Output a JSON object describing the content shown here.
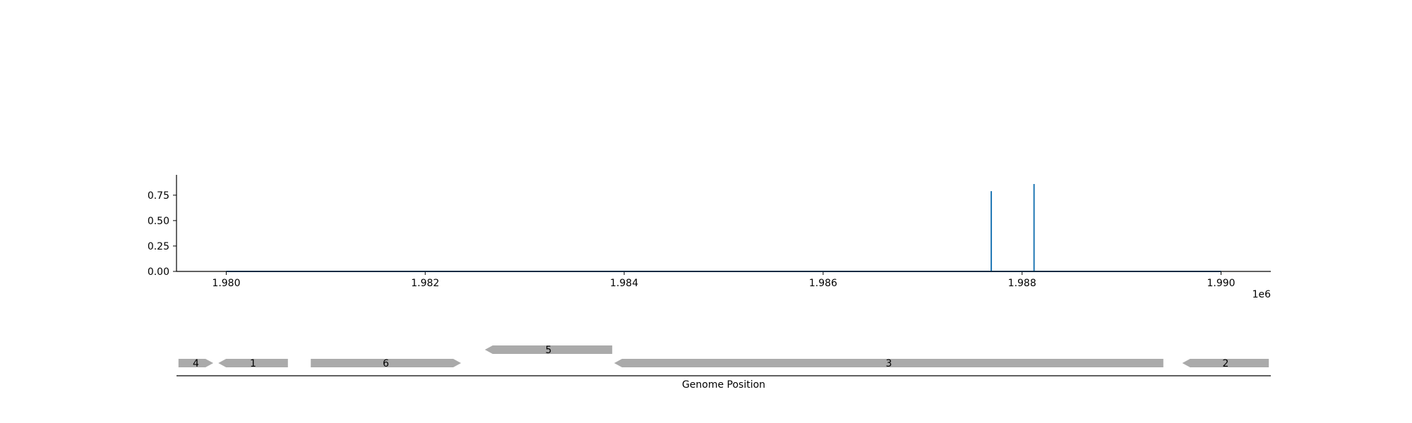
{
  "chart_data": {
    "type": "line",
    "x_offset_label": "1e6",
    "xlim": [
      1979500,
      1990500
    ],
    "ylim": [
      0,
      0.95
    ],
    "xticks": [
      {
        "value": 1980000,
        "label": "1.980"
      },
      {
        "value": 1982000,
        "label": "1.982"
      },
      {
        "value": 1984000,
        "label": "1.984"
      },
      {
        "value": 1986000,
        "label": "1.986"
      },
      {
        "value": 1988000,
        "label": "1.988"
      },
      {
        "value": 1990000,
        "label": "1.990"
      }
    ],
    "yticks": [
      {
        "value": 0.0,
        "label": "0.00"
      },
      {
        "value": 0.25,
        "label": "0.25"
      },
      {
        "value": 0.5,
        "label": "0.50"
      },
      {
        "value": 0.75,
        "label": "0.75"
      }
    ],
    "series": [
      {
        "color": "#1f77b4",
        "x": [
          1980000,
          1987690,
          1987690,
          1987690,
          1988120,
          1988120,
          1988120,
          1990000
        ],
        "y": [
          0,
          0,
          0.79,
          0,
          0,
          0.86,
          0,
          0
        ]
      }
    ],
    "genes": {
      "color": "#aaaaaa",
      "xlabel": "Genome Position",
      "items": [
        {
          "label": "4",
          "start": 1979520,
          "end": 1979870,
          "strand": 1,
          "level": 0
        },
        {
          "label": "1",
          "start": 1979920,
          "end": 1980620,
          "strand": -1,
          "level": 0
        },
        {
          "label": "6",
          "start": 1980850,
          "end": 1982360,
          "strand": 1,
          "level": 0
        },
        {
          "label": "5",
          "start": 1982600,
          "end": 1983880,
          "strand": -1,
          "level": 1
        },
        {
          "label": "3",
          "start": 1983900,
          "end": 1989420,
          "strand": -1,
          "level": 0
        },
        {
          "label": "2",
          "start": 1989610,
          "end": 1990480,
          "strand": -1,
          "level": 0
        }
      ]
    }
  }
}
